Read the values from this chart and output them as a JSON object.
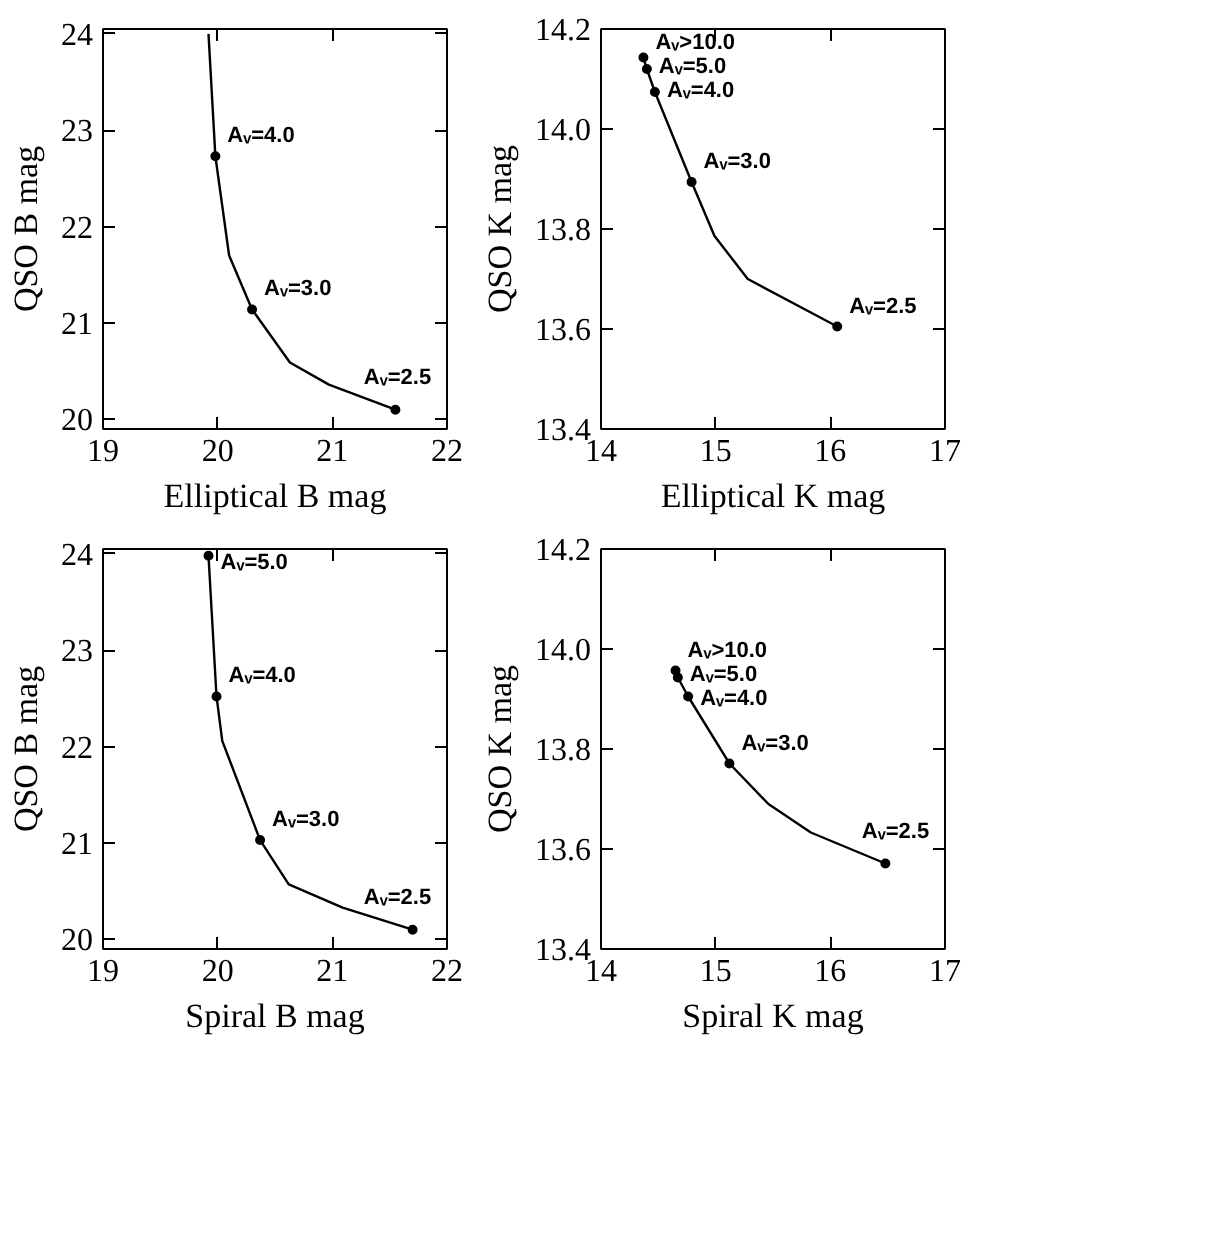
{
  "chart_data": [
    {
      "type": "line",
      "xlabel": "Elliptical B mag",
      "ylabel": "QSO B mag",
      "xlim": [
        19,
        22
      ],
      "ylim": [
        19.9,
        24.05
      ],
      "xticks": [
        19,
        20,
        21,
        22
      ],
      "yticks": [
        20,
        21,
        22,
        23,
        24
      ],
      "series": [
        {
          "color": "#000000",
          "x": [
            19.92,
            19.98,
            20.1,
            20.3,
            20.63,
            20.97,
            21.55
          ],
          "values": [
            24.0,
            22.73,
            21.7,
            21.14,
            20.59,
            20.36,
            20.1
          ]
        },
        {
          "type": "scatter",
          "marker": "circle",
          "color": "#000000",
          "x": [
            19.98,
            20.3,
            21.55
          ],
          "values": [
            22.73,
            21.14,
            20.1
          ]
        }
      ],
      "annotations": [
        {
          "text": "Aᵥ=4.0",
          "x": 19.98,
          "y": 22.73
        },
        {
          "text": "Aᵥ=3.0",
          "x": 20.3,
          "y": 21.14
        },
        {
          "text": "Aᵥ=2.5",
          "x": 21.55,
          "y": 20.1
        }
      ]
    },
    {
      "type": "line",
      "xlabel": "Elliptical K mag",
      "ylabel": "QSO K mag",
      "xlim": [
        14,
        17
      ],
      "ylim": [
        13.4,
        14.2
      ],
      "xticks": [
        14,
        15,
        16,
        17
      ],
      "yticks": [
        13.4,
        13.6,
        13.8,
        {
          "value": 14.0,
          "label": "14.0"
        },
        14.2
      ],
      "series": [
        {
          "color": "#000000",
          "x": [
            14.37,
            14.4,
            14.47,
            14.79,
            14.99,
            15.28,
            16.06
          ],
          "values": [
            14.143,
            14.12,
            14.074,
            13.894,
            13.786,
            13.7,
            13.605
          ]
        },
        {
          "type": "scatter",
          "marker": "circle",
          "color": "#000000",
          "x": [
            14.37,
            14.4,
            14.47,
            14.79,
            16.06
          ],
          "values": [
            14.143,
            14.12,
            14.074,
            13.894,
            13.605
          ]
        }
      ],
      "annotations": [
        {
          "text": "Aᵥ>10.0",
          "x": 14.37,
          "y": 14.143
        },
        {
          "text": "Aᵥ=5.0",
          "x": 14.4,
          "y": 14.12
        },
        {
          "text": "Aᵥ=4.0",
          "x": 14.47,
          "y": 14.074
        },
        {
          "text": "Aᵥ=3.0",
          "x": 14.79,
          "y": 13.894
        },
        {
          "text": "Aᵥ=2.5",
          "x": 16.06,
          "y": 13.605
        }
      ]
    },
    {
      "type": "line",
      "xlabel": "Spiral B mag",
      "ylabel": "QSO B mag",
      "xlim": [
        19,
        22
      ],
      "ylim": [
        19.9,
        24.05
      ],
      "xticks": [
        19,
        20,
        21,
        22
      ],
      "yticks": [
        20,
        21,
        22,
        23,
        24
      ],
      "series": [
        {
          "color": "#000000",
          "x": [
            19.92,
            19.99,
            20.04,
            20.37,
            20.62,
            21.09,
            21.7
          ],
          "values": [
            23.98,
            22.52,
            22.06,
            21.03,
            20.57,
            20.33,
            20.1
          ]
        },
        {
          "type": "scatter",
          "marker": "circle",
          "color": "#000000",
          "x": [
            19.92,
            19.99,
            20.37,
            21.7
          ],
          "values": [
            23.98,
            22.52,
            21.03,
            20.1
          ]
        }
      ],
      "annotations": [
        {
          "text": "Aᵥ=5.0",
          "x": 19.92,
          "y": 23.98
        },
        {
          "text": "Aᵥ=4.0",
          "x": 19.99,
          "y": 22.52
        },
        {
          "text": "Aᵥ=3.0",
          "x": 20.37,
          "y": 21.03
        },
        {
          "text": "Aᵥ=2.5",
          "x": 21.7,
          "y": 20.1
        }
      ]
    },
    {
      "type": "line",
      "xlabel": "Spiral K mag",
      "ylabel": "QSO K mag",
      "xlim": [
        14,
        17
      ],
      "ylim": [
        13.4,
        14.2
      ],
      "xticks": [
        14,
        15,
        16,
        17
      ],
      "yticks": [
        13.4,
        13.6,
        13.8,
        {
          "value": 14.0,
          "label": "14.0"
        },
        14.2
      ],
      "series": [
        {
          "color": "#000000",
          "x": [
            14.65,
            14.67,
            14.76,
            15.12,
            15.46,
            15.83,
            16.48
          ],
          "values": [
            13.957,
            13.943,
            13.905,
            13.771,
            13.69,
            13.633,
            13.571
          ]
        },
        {
          "type": "scatter",
          "marker": "circle",
          "color": "#000000",
          "x": [
            14.65,
            14.67,
            14.76,
            15.12,
            16.48
          ],
          "values": [
            13.957,
            13.943,
            13.905,
            13.771,
            13.571
          ]
        }
      ],
      "annotations": [
        {
          "text": "Aᵥ>10.0",
          "x": 14.65,
          "y": 13.957
        },
        {
          "text": "Aᵥ=5.0",
          "x": 14.67,
          "y": 13.943
        },
        {
          "text": "Aᵥ=4.0",
          "x": 14.76,
          "y": 13.905
        },
        {
          "text": "Aᵥ=3.0",
          "x": 15.12,
          "y": 13.771
        },
        {
          "text": "Aᵥ=2.5",
          "x": 16.48,
          "y": 13.571
        }
      ]
    }
  ]
}
